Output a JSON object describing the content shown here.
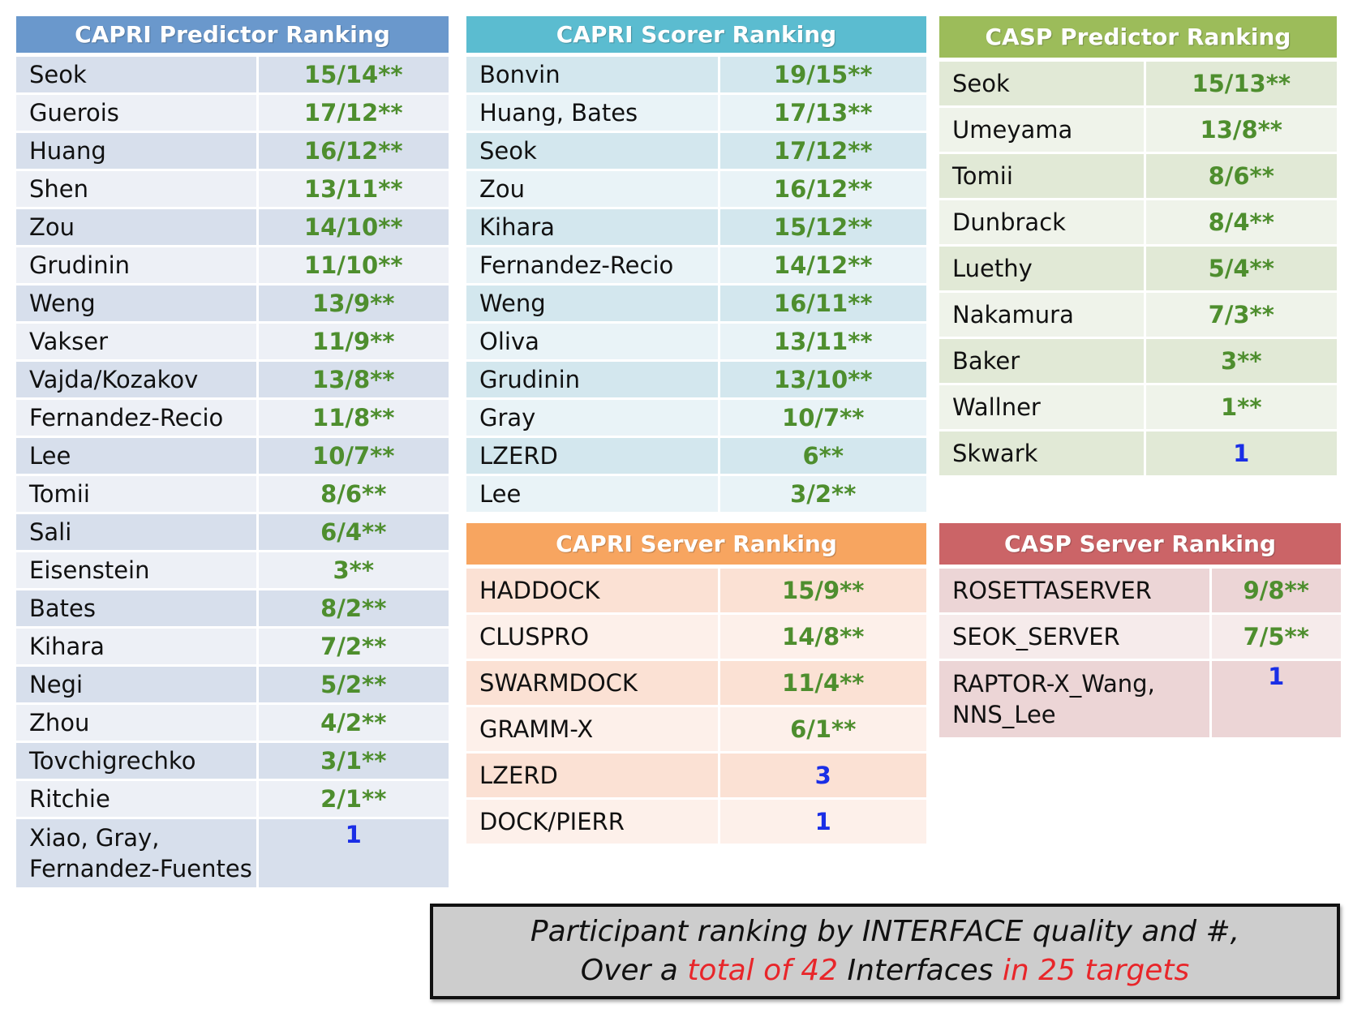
{
  "tables": [
    {
      "title": "CAPRI Predictor Ranking",
      "rows": [
        {
          "name": "Seok",
          "value": "15/14**",
          "color": "green"
        },
        {
          "name": "Guerois",
          "value": "17/12**",
          "color": "green"
        },
        {
          "name": "Huang",
          "value": "16/12**",
          "color": "green"
        },
        {
          "name": "Shen",
          "value": "13/11**",
          "color": "green"
        },
        {
          "name": "Zou",
          "value": "14/10**",
          "color": "green"
        },
        {
          "name": "Grudinin",
          "value": "11/10**",
          "color": "green"
        },
        {
          "name": "Weng",
          "value": "13/9**",
          "color": "green"
        },
        {
          "name": "Vakser",
          "value": "11/9**",
          "color": "green"
        },
        {
          "name": "Vajda/Kozakov",
          "value": "13/8**",
          "color": "green"
        },
        {
          "name": "Fernandez-Recio",
          "value": "11/8**",
          "color": "green"
        },
        {
          "name": "Lee",
          "value": "10/7**",
          "color": "green"
        },
        {
          "name": "Tomii",
          "value": "8/6**",
          "color": "green"
        },
        {
          "name": "Sali",
          "value": "6/4**",
          "color": "green"
        },
        {
          "name": "Eisenstein",
          "value": "3**",
          "color": "green"
        },
        {
          "name": "Bates",
          "value": "8/2**",
          "color": "green"
        },
        {
          "name": "Kihara",
          "value": "7/2**",
          "color": "green"
        },
        {
          "name": "Negi",
          "value": "5/2**",
          "color": "green"
        },
        {
          "name": "Zhou",
          "value": "4/2**",
          "color": "green"
        },
        {
          "name": "Tovchigrechko",
          "value": "3/1**",
          "color": "green"
        },
        {
          "name": "Ritchie",
          "value": "2/1**",
          "color": "green"
        },
        {
          "name": "Xiao, Gray,",
          "name2": "Fernandez-Fuentes",
          "value": "1",
          "color": "blue"
        }
      ]
    },
    {
      "title": "CAPRI Scorer Ranking",
      "rows": [
        {
          "name": "Bonvin",
          "value": "19/15**",
          "color": "green"
        },
        {
          "name": "Huang, Bates",
          "value": "17/13**",
          "color": "green"
        },
        {
          "name": "Seok",
          "value": "17/12**",
          "color": "green"
        },
        {
          "name": "Zou",
          "value": "16/12**",
          "color": "green"
        },
        {
          "name": "Kihara",
          "value": "15/12**",
          "color": "green"
        },
        {
          "name": "Fernandez-Recio",
          "value": "14/12**",
          "color": "green"
        },
        {
          "name": "Weng",
          "value": "16/11**",
          "color": "green"
        },
        {
          "name": "Oliva",
          "value": "13/11**",
          "color": "green"
        },
        {
          "name": "Grudinin",
          "value": "13/10**",
          "color": "green"
        },
        {
          "name": "Gray",
          "value": "10/7**",
          "color": "green"
        },
        {
          "name": "LZERD",
          "value": "6**",
          "color": "green"
        },
        {
          "name": "Lee",
          "value": "3/2**",
          "color": "green"
        }
      ]
    },
    {
      "title": "CASP Predictor Ranking",
      "rows": [
        {
          "name": "Seok",
          "value": "15/13**",
          "color": "green"
        },
        {
          "name": "Umeyama",
          "value": "13/8**",
          "color": "green"
        },
        {
          "name": "Tomii",
          "value": "8/6**",
          "color": "green"
        },
        {
          "name": "Dunbrack",
          "value": "8/4**",
          "color": "green"
        },
        {
          "name": "Luethy",
          "value": "5/4**",
          "color": "green"
        },
        {
          "name": "Nakamura",
          "value": "7/3**",
          "color": "green"
        },
        {
          "name": "Baker",
          "value": "3**",
          "color": "green"
        },
        {
          "name": "Wallner",
          "value": "1**",
          "color": "green"
        },
        {
          "name": "Skwark",
          "value": "1",
          "color": "blue"
        }
      ]
    },
    {
      "title": "CAPRI Server Ranking",
      "rows": [
        {
          "name": "HADDOCK",
          "value": "15/9**",
          "color": "green"
        },
        {
          "name": "CLUSPRO",
          "value": "14/8**",
          "color": "green"
        },
        {
          "name": "SWARMDOCK",
          "value": "11/4**",
          "color": "green"
        },
        {
          "name": "GRAMM-X",
          "value": "6/1**",
          "color": "green"
        },
        {
          "name": "LZERD",
          "value": "3",
          "color": "blue"
        },
        {
          "name": "DOCK/PIERR",
          "value": "1",
          "color": "blue"
        }
      ]
    },
    {
      "title": "CASP Server Ranking",
      "rows": [
        {
          "name": "ROSETTASERVER",
          "value": "9/8**",
          "color": "green"
        },
        {
          "name": "SEOK_SERVER",
          "value": "7/5**",
          "color": "green"
        },
        {
          "name": "RAPTOR-X_Wang,",
          "name2": "NNS_Lee",
          "value": "1",
          "color": "blue"
        }
      ]
    }
  ],
  "caption": {
    "line1": "Participant ranking by INTERFACE quality and #,",
    "line2_a": "Over a ",
    "line2_b": "total of 42",
    "line2_c": " Interfaces ",
    "line2_d": "in 25 targets"
  },
  "colors": {
    "green": "#4e8e2e",
    "blue": "#1a2ee6",
    "red": "#e8262a"
  }
}
